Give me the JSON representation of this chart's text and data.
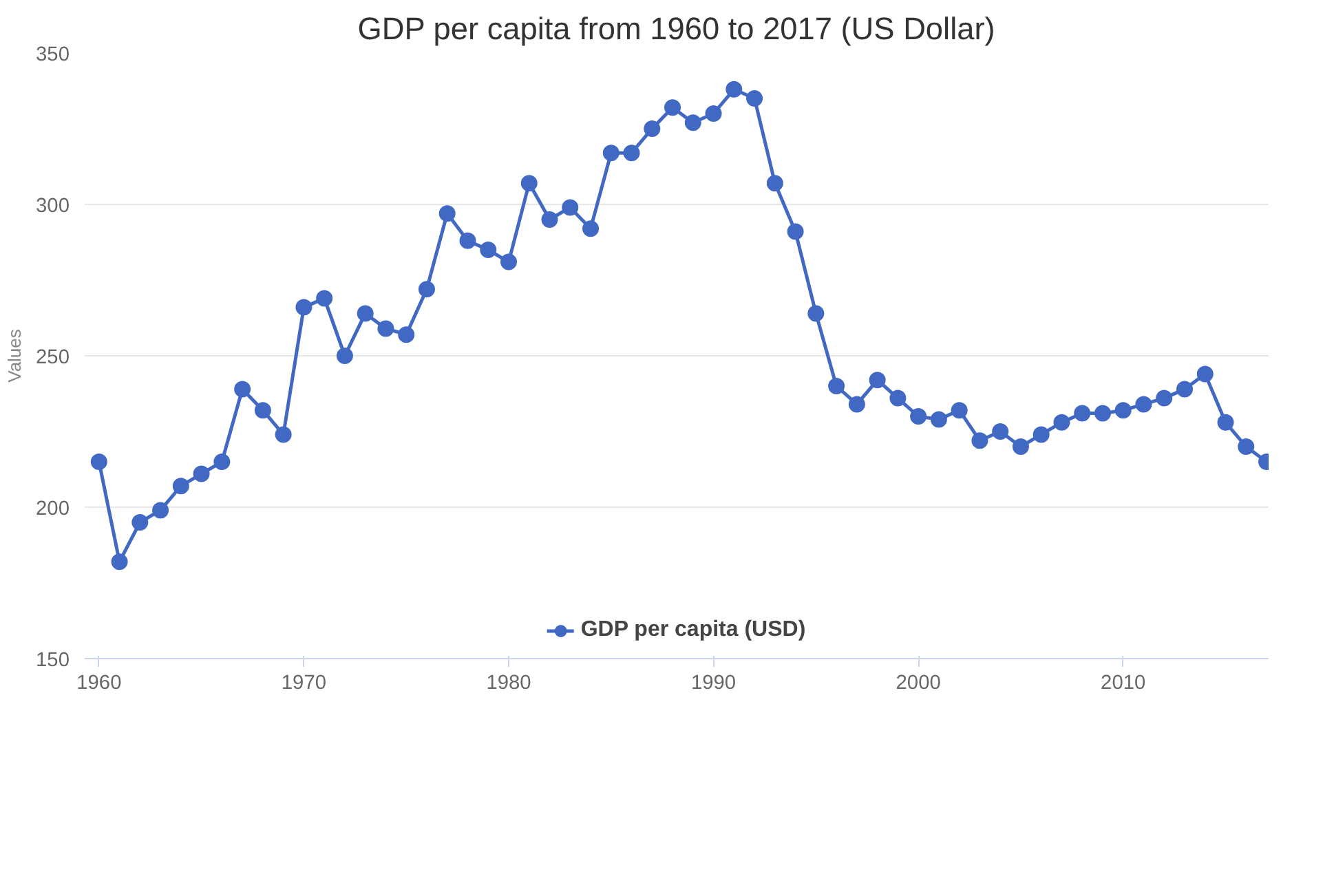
{
  "chart_data": {
    "type": "line",
    "title": "GDP per capita from 1960 to 2017 (US Dollar)",
    "ylabel": "Values",
    "x": [
      1960,
      1961,
      1962,
      1963,
      1964,
      1965,
      1966,
      1967,
      1968,
      1969,
      1970,
      1971,
      1972,
      1973,
      1974,
      1975,
      1976,
      1977,
      1978,
      1979,
      1980,
      1981,
      1982,
      1983,
      1984,
      1985,
      1986,
      1987,
      1988,
      1989,
      1990,
      1991,
      1992,
      1993,
      1994,
      1995,
      1996,
      1997,
      1998,
      1999,
      2000,
      2001,
      2002,
      2003,
      2004,
      2005,
      2006,
      2007,
      2008,
      2009,
      2010,
      2011,
      2012,
      2013,
      2014,
      2015,
      2016,
      2017
    ],
    "series": [
      {
        "name": "GDP per capita (USD)",
        "color": "#4169c4",
        "values": [
          215,
          182,
          195,
          199,
          207,
          211,
          215,
          239,
          232,
          224,
          266,
          269,
          250,
          264,
          259,
          257,
          272,
          297,
          288,
          285,
          281,
          307,
          295,
          299,
          292,
          317,
          317,
          325,
          332,
          327,
          330,
          338,
          335,
          307,
          291,
          264,
          240,
          234,
          242,
          236,
          230,
          229,
          232,
          222,
          225,
          220,
          224,
          228,
          231,
          231,
          232,
          234,
          236,
          239,
          244,
          228,
          220,
          215
        ]
      }
    ],
    "xlim": [
      1959.3,
      2017.1
    ],
    "xticks": [
      1960,
      1970,
      1980,
      1990,
      2000,
      2010
    ],
    "ylim": [
      150,
      350
    ],
    "yticks": [
      150,
      200,
      250,
      300,
      350
    ],
    "grid": "y",
    "legend": "bottom",
    "marker": "circle",
    "line_style": "solid"
  }
}
